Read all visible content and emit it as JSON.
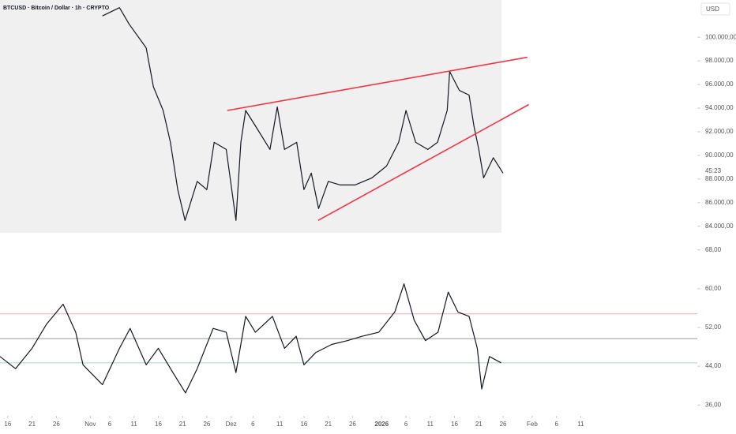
{
  "chart_data": [
    {
      "type": "line",
      "title": "BTCUSD · Bitcoin / Dollar · 1h · CRYPTO",
      "currency": "USD",
      "countdown": "45:23",
      "x": [
        19.5,
        23,
        25,
        28.5,
        30,
        32,
        33.5,
        35,
        36.5,
        37.5,
        39,
        41,
        42.5,
        45,
        47,
        48,
        49,
        51,
        54,
        55.5,
        57,
        59.5,
        61,
        62.5,
        64,
        66,
        68.5,
        71.5,
        75,
        78,
        80.5,
        82,
        84,
        86.5,
        88.5,
        90.5,
        91,
        93,
        95,
        96,
        97,
        98,
        100,
        102
      ],
      "series": [
        {
          "color": "#131722",
          "values": [
            101800,
            102500,
            101100,
            99100,
            95800,
            93800,
            91100,
            87100,
            84500,
            85800,
            87800,
            87100,
            91100,
            90500,
            84500,
            91100,
            93800,
            92500,
            90500,
            94100,
            90500,
            91100,
            87100,
            88500,
            85500,
            87800,
            87500,
            87500,
            88100,
            89100,
            91100,
            93800,
            91100,
            90500,
            91100,
            93800,
            97100,
            95500,
            95100,
            92500,
            90500,
            88100,
            89800,
            88500
          ]
        }
      ],
      "trendlines": [
        {
          "color": "#f23645",
          "x": [
            45.2,
            107
          ],
          "y": [
            93800,
            98300
          ]
        },
        {
          "color": "#f23645",
          "x": [
            63.9,
            107.3
          ],
          "y": [
            84500,
            94300
          ]
        }
      ],
      "xlim": [
        -1.6,
        142
      ],
      "ylim": [
        83450,
        103150
      ],
      "yticks": [
        {
          "value": 84000,
          "label": "84.000,00"
        },
        {
          "value": 86000,
          "label": "86.000,00"
        },
        {
          "value": 88000,
          "label": "88.000,00"
        },
        {
          "value": 90000,
          "label": "90.000,00"
        },
        {
          "value": 92000,
          "label": "92.000,00"
        },
        {
          "value": 94000,
          "label": "94.000,00"
        },
        {
          "value": 96000,
          "label": "96.000,00"
        },
        {
          "value": 98000,
          "label": "98.000,00"
        },
        {
          "value": 100000,
          "label": "100.000,00"
        }
      ]
    },
    {
      "type": "line",
      "x": [
        -1.6,
        1.6,
        5,
        8,
        11.4,
        14,
        15.5,
        19.5,
        23,
        25.2,
        28.5,
        31,
        34,
        36.6,
        39,
        42.3,
        45,
        47,
        49,
        51,
        54.5,
        57,
        59.4,
        61,
        63.4,
        66.7,
        70,
        73,
        76.4,
        79.7,
        81.6,
        83.7,
        86,
        88.6,
        90.7,
        92.7,
        95,
        96.7,
        97.6,
        99.2,
        101.6
      ],
      "series": [
        {
          "color": "#131722",
          "values": [
            46,
            43.5,
            47.7,
            52.7,
            56.8,
            51,
            44.3,
            40.2,
            47.7,
            51.8,
            44.3,
            47.7,
            42.7,
            38.5,
            43.5,
            51.8,
            51,
            42.7,
            54.3,
            51,
            54.3,
            47.7,
            50.2,
            44.3,
            46.8,
            48.5,
            49.3,
            50.2,
            51,
            55.2,
            61,
            53.5,
            49.3,
            51,
            59.3,
            55.2,
            54.3,
            47.7,
            39.3,
            46,
            44.7
          ]
        }
      ],
      "levels": [
        {
          "value": 54.8,
          "color": "#f7a8ad"
        },
        {
          "value": 49.7,
          "color": "#9598a1"
        },
        {
          "value": 44.7,
          "color": "#a5d6c0"
        }
      ],
      "xlim": [
        -1.6,
        142
      ],
      "ylim": [
        34.9,
        69.1
      ],
      "yticks": [
        {
          "value": 36,
          "label": "36,00"
        },
        {
          "value": 44,
          "label": "44,00"
        },
        {
          "value": 52,
          "label": "52,00"
        },
        {
          "value": 60,
          "label": "60,00"
        },
        {
          "value": 68,
          "label": "68,00"
        }
      ],
      "xticks": [
        {
          "value": 0,
          "label": "16"
        },
        {
          "value": 5,
          "label": "21"
        },
        {
          "value": 10,
          "label": "26"
        },
        {
          "value": 17,
          "label": "Nov"
        },
        {
          "value": 21,
          "label": "6"
        },
        {
          "value": 26,
          "label": "11"
        },
        {
          "value": 31,
          "label": "16"
        },
        {
          "value": 36,
          "label": "21"
        },
        {
          "value": 41,
          "label": "26"
        },
        {
          "value": 46,
          "label": "Dez"
        },
        {
          "value": 50.5,
          "label": "6"
        },
        {
          "value": 56,
          "label": "11"
        },
        {
          "value": 61,
          "label": "16"
        },
        {
          "value": 66,
          "label": "21"
        },
        {
          "value": 71,
          "label": "26"
        },
        {
          "value": 77,
          "label": "2026"
        },
        {
          "value": 82,
          "label": "6"
        },
        {
          "value": 87,
          "label": "11"
        },
        {
          "value": 92,
          "label": "16"
        },
        {
          "value": 97,
          "label": "21"
        },
        {
          "value": 102,
          "label": "26"
        },
        {
          "value": 108,
          "label": "Feb"
        },
        {
          "value": 113,
          "label": "6"
        },
        {
          "value": 118,
          "label": "11"
        }
      ]
    }
  ]
}
